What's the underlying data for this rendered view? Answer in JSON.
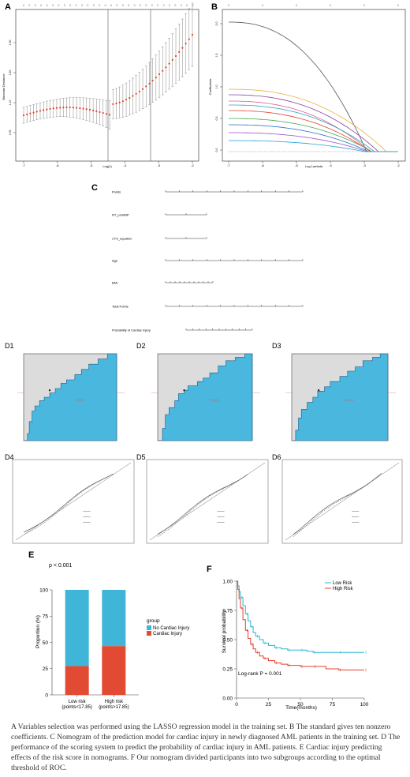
{
  "panels": {
    "A": {
      "label": "A",
      "ylabel": "Binomial Deviance",
      "xlabel": "Log(λ)",
      "x_ticks": [
        "-7",
        "-6",
        "-5",
        "-4",
        "-3",
        "-2"
      ],
      "y_ticks": [
        "1.05",
        "1.10",
        "1.20",
        "1.30"
      ]
    },
    "B": {
      "label": "B",
      "ylabel": "Coefficients",
      "xlabel": "Log Lambda",
      "x_ticks": [
        "-7",
        "-6",
        "-5",
        "-4",
        "-3",
        "-2"
      ],
      "y_ticks": [
        "0.0",
        "0.5",
        "1.0",
        "1.5",
        "2.0"
      ]
    },
    "C": {
      "label": "C",
      "rows": [
        "Points",
        "NT_proBNP",
        "cTnI_equation",
        "Age",
        "BMI",
        "Total Points",
        "Probability of Cardiac Injury"
      ]
    },
    "D": {
      "labels": [
        "D1",
        "D2",
        "D3",
        "D4",
        "D5",
        "D6"
      ]
    }
  },
  "chart_data": [
    {
      "panel": "E",
      "type": "bar",
      "categories": [
        "Low risk\n(points<17.85)",
        "High risk\n(points>17.85)"
      ],
      "category_lines": [
        [
          "Low risk",
          "(points<17.85)"
        ],
        [
          "High risk",
          "(points>17.85)"
        ]
      ],
      "series": [
        {
          "name": "No Cardiac Injury",
          "values": [
            72.5,
            53.5
          ],
          "color": "#3fb6d8"
        },
        {
          "name": "Cardiac Injury",
          "values": [
            27.5,
            46.5
          ],
          "color": "#e24a33"
        }
      ],
      "ylabel": "Proportion (%)",
      "y_ticks": [
        "0",
        "25",
        "50",
        "75",
        "100"
      ],
      "ylim": [
        0,
        100
      ],
      "legend_title": "group",
      "annotation": "p < 0.001",
      "panel_label": "E"
    },
    {
      "panel": "F",
      "type": "line",
      "xlabel": "Time(months)",
      "ylabel": "Survival probability",
      "x_ticks": [
        "0",
        "25",
        "50",
        "75",
        "100"
      ],
      "y_ticks": [
        "0.00",
        "0.25",
        "0.50",
        "0.75",
        "1.00"
      ],
      "xlim": [
        0,
        100
      ],
      "ylim": [
        0,
        1
      ],
      "annotation": "Log-rank  P = 0.001",
      "panel_label": "F",
      "series": [
        {
          "name": "Low Risk",
          "color": "#2ab7d3",
          "x": [
            0,
            1,
            2,
            3,
            5,
            7,
            9,
            11,
            13,
            15,
            18,
            21,
            25,
            30,
            35,
            40,
            45,
            50,
            55,
            60,
            70,
            80,
            90,
            100
          ],
          "y": [
            1.0,
            0.96,
            0.91,
            0.86,
            0.79,
            0.72,
            0.66,
            0.61,
            0.56,
            0.53,
            0.5,
            0.47,
            0.45,
            0.43,
            0.42,
            0.41,
            0.41,
            0.41,
            0.4,
            0.39,
            0.39,
            0.39,
            0.39,
            0.39
          ]
        },
        {
          "name": "High Risk",
          "color": "#e2402e",
          "x": [
            0,
            1,
            2,
            3,
            5,
            7,
            9,
            11,
            13,
            15,
            18,
            21,
            25,
            30,
            35,
            40,
            45,
            50,
            55,
            60,
            70,
            80,
            90,
            100
          ],
          "y": [
            1.0,
            0.93,
            0.85,
            0.77,
            0.67,
            0.58,
            0.51,
            0.46,
            0.42,
            0.39,
            0.36,
            0.34,
            0.32,
            0.3,
            0.29,
            0.28,
            0.28,
            0.27,
            0.27,
            0.27,
            0.25,
            0.24,
            0.24,
            0.24
          ]
        }
      ]
    }
  ],
  "caption": "A Variables selection was performed using the LASSO regression model in the training set. B The standard gives ten nonzero coefficients. C Nomogram of the prediction model for cardiac injury in newly diagnosed AML patients in the training set. D The performance of the scoring system to predict the probability of cardiac injury in AML patients. E Cardiac injury predicting effects of the risk score in nomograms. F Our nomogram divided participants into two subgroups according to the optimal threshold of ROC."
}
